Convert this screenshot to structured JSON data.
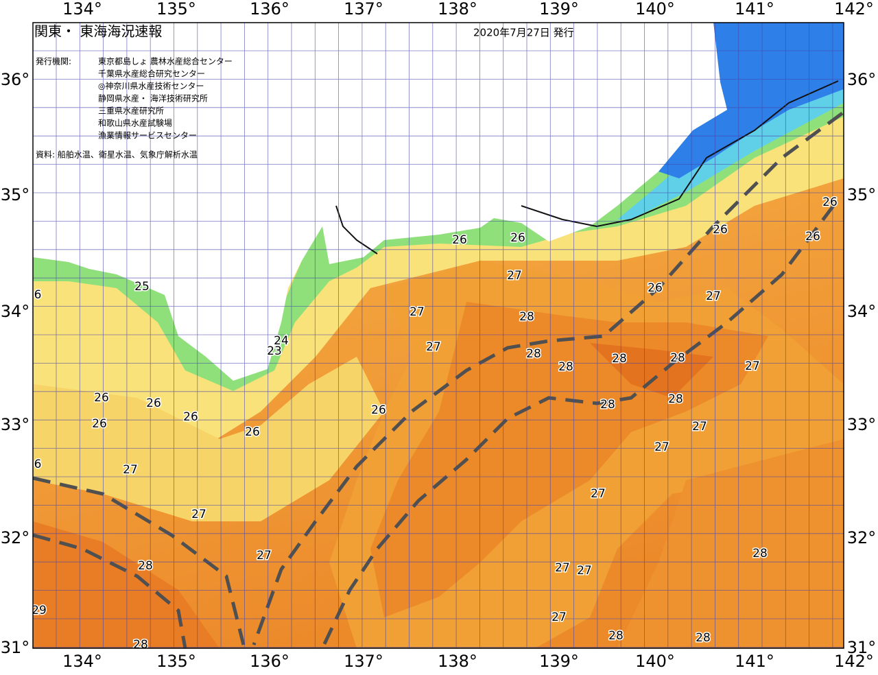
{
  "header": {
    "title": "関東・ 東海海況速報",
    "issued": "2020年7月27日 発行"
  },
  "issuers": {
    "label": "発行機関:",
    "list": [
      "東京都島しょ 農林水産総合センター",
      "千葉県水産総合研究センター",
      "◎神奈川県水産技術センター",
      "静岡県水産・ 海洋技術研究所",
      "三重県水産研究所",
      "和歌山県水産試験場",
      "漁業情報サービスセンター"
    ]
  },
  "source": "資料: 船舶水温、衛星水温、気象庁解析水温",
  "axes": {
    "longitude": [
      "134°",
      "135°",
      "136°",
      "137°",
      "138°",
      "139°",
      "140°",
      "141°",
      "142°"
    ],
    "latitude": [
      "36°",
      "35°",
      "34°",
      "33°",
      "32°",
      "31°"
    ]
  },
  "contour_labels": [
    "26",
    "26",
    "27",
    "26",
    "27",
    "26",
    "26",
    "26",
    "27",
    "27",
    "28",
    "28",
    "28",
    "28",
    "28",
    "27",
    "28",
    "28",
    "27",
    "27",
    "27",
    "26",
    "26",
    "26",
    "26",
    "26",
    "26",
    "27",
    "27",
    "27",
    "28",
    "27",
    "27",
    "28",
    "27",
    "28",
    "28",
    "28",
    "29",
    "24",
    "23",
    "25",
    "6",
    "6"
  ]
}
